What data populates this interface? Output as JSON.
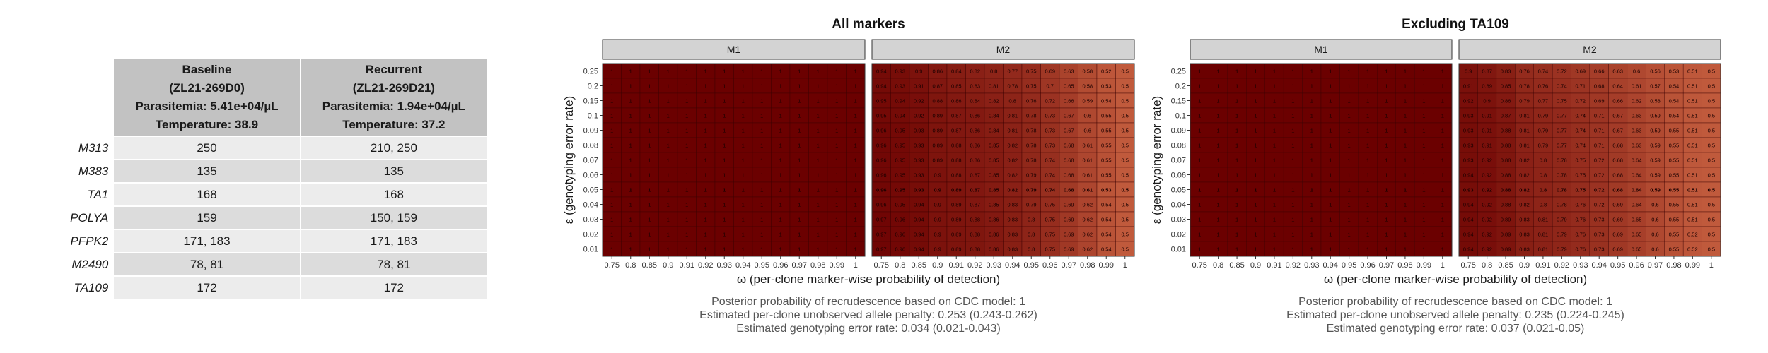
{
  "table": {
    "headers": [
      {
        "lines": [
          "Baseline",
          "(ZL21-269D0)",
          "Parasitemia: 5.41e+04/µL",
          "Temperature: 38.9"
        ]
      },
      {
        "lines": [
          "Recurrent",
          "(ZL21-269D21)",
          "Parasitemia: 1.94e+04/µL",
          "Temperature: 37.2"
        ]
      }
    ],
    "rows": [
      {
        "marker": "M313",
        "baseline": "250",
        "recurrent": "210, 250"
      },
      {
        "marker": "M383",
        "baseline": "135",
        "recurrent": "135"
      },
      {
        "marker": "TA1",
        "baseline": "168",
        "recurrent": "168"
      },
      {
        "marker": "POLYA",
        "baseline": "159",
        "recurrent": "150, 159"
      },
      {
        "marker": "PFPK2",
        "baseline": "171, 183",
        "recurrent": "171, 183"
      },
      {
        "marker": "M2490",
        "baseline": "78, 81",
        "recurrent": "78, 81"
      },
      {
        "marker": "TA109",
        "baseline": "172",
        "recurrent": "172"
      }
    ]
  },
  "chart_data": [
    {
      "type": "heatmap",
      "title": "All markers",
      "xlabel": "ω (per-clone marker-wise probability of detection)",
      "ylabel": "ε (genotyping error rate)",
      "x": [
        "0.75",
        "0.8",
        "0.85",
        "0.9",
        "0.91",
        "0.92",
        "0.93",
        "0.94",
        "0.95",
        "0.96",
        "0.97",
        "0.98",
        "0.99",
        "1"
      ],
      "y": [
        "0.25",
        "0.2",
        "0.15",
        "0.1",
        "0.09",
        "0.08",
        "0.07",
        "0.06",
        "0.05",
        "0.04",
        "0.03",
        "0.02",
        "0.01"
      ],
      "bold_row": "0.05",
      "colors": {
        "high": "#6b0000",
        "low": "#c05a3c"
      },
      "facets": [
        {
          "name": "M1",
          "values": [
            [
              1,
              1,
              1,
              1,
              1,
              1,
              1,
              1,
              1,
              1,
              1,
              1,
              1,
              1
            ],
            [
              1,
              1,
              1,
              1,
              1,
              1,
              1,
              1,
              1,
              1,
              1,
              1,
              1,
              1
            ],
            [
              1,
              1,
              1,
              1,
              1,
              1,
              1,
              1,
              1,
              1,
              1,
              1,
              1,
              1
            ],
            [
              1,
              1,
              1,
              1,
              1,
              1,
              1,
              1,
              1,
              1,
              1,
              1,
              1,
              1
            ],
            [
              1,
              1,
              1,
              1,
              1,
              1,
              1,
              1,
              1,
              1,
              1,
              1,
              1,
              1
            ],
            [
              1,
              1,
              1,
              1,
              1,
              1,
              1,
              1,
              1,
              1,
              1,
              1,
              1,
              1
            ],
            [
              1,
              1,
              1,
              1,
              1,
              1,
              1,
              1,
              1,
              1,
              1,
              1,
              1,
              1
            ],
            [
              1,
              1,
              1,
              1,
              1,
              1,
              1,
              1,
              1,
              1,
              1,
              1,
              1,
              1
            ],
            [
              1,
              1,
              1,
              1,
              1,
              1,
              1,
              1,
              1,
              1,
              1,
              1,
              1,
              1
            ],
            [
              1,
              1,
              1,
              1,
              1,
              1,
              1,
              1,
              1,
              1,
              1,
              1,
              1,
              1
            ],
            [
              1,
              1,
              1,
              1,
              1,
              1,
              1,
              1,
              1,
              1,
              1,
              1,
              1,
              1
            ],
            [
              1,
              1,
              1,
              1,
              1,
              1,
              1,
              1,
              1,
              1,
              1,
              1,
              1,
              1
            ],
            [
              1,
              1,
              1,
              1,
              1,
              1,
              1,
              1,
              1,
              1,
              1,
              1,
              1,
              1
            ]
          ]
        },
        {
          "name": "M2",
          "values": [
            [
              0.94,
              0.93,
              0.9,
              0.86,
              0.84,
              0.82,
              0.8,
              0.77,
              0.75,
              0.69,
              0.63,
              0.58,
              0.52,
              0.5
            ],
            [
              0.94,
              0.93,
              0.91,
              0.87,
              0.85,
              0.83,
              0.81,
              0.78,
              0.75,
              0.7,
              0.65,
              0.58,
              0.53,
              0.5
            ],
            [
              0.95,
              0.94,
              0.92,
              0.88,
              0.86,
              0.84,
              0.82,
              0.8,
              0.76,
              0.72,
              0.66,
              0.59,
              0.54,
              0.5
            ],
            [
              0.95,
              0.94,
              0.92,
              0.89,
              0.87,
              0.86,
              0.84,
              0.81,
              0.78,
              0.73,
              0.67,
              0.6,
              0.55,
              0.5
            ],
            [
              0.96,
              0.95,
              0.93,
              0.89,
              0.87,
              0.86,
              0.84,
              0.81,
              0.78,
              0.73,
              0.67,
              0.6,
              0.55,
              0.5
            ],
            [
              0.96,
              0.95,
              0.93,
              0.89,
              0.88,
              0.86,
              0.85,
              0.82,
              0.78,
              0.73,
              0.68,
              0.61,
              0.55,
              0.5
            ],
            [
              0.96,
              0.95,
              0.93,
              0.89,
              0.88,
              0.86,
              0.85,
              0.82,
              0.78,
              0.74,
              0.68,
              0.61,
              0.55,
              0.5
            ],
            [
              0.96,
              0.95,
              0.93,
              0.9,
              0.88,
              0.87,
              0.85,
              0.82,
              0.79,
              0.74,
              0.68,
              0.61,
              0.55,
              0.5
            ],
            [
              0.96,
              0.95,
              0.93,
              0.9,
              0.89,
              0.87,
              0.85,
              0.82,
              0.79,
              0.74,
              0.68,
              0.61,
              0.53,
              0.5
            ],
            [
              0.96,
              0.95,
              0.94,
              0.9,
              0.89,
              0.87,
              0.85,
              0.83,
              0.79,
              0.75,
              0.69,
              0.62,
              0.54,
              0.5
            ],
            [
              0.97,
              0.96,
              0.94,
              0.9,
              0.89,
              0.88,
              0.86,
              0.83,
              0.8,
              0.75,
              0.69,
              0.62,
              0.54,
              0.5
            ],
            [
              0.97,
              0.96,
              0.94,
              0.9,
              0.89,
              0.88,
              0.86,
              0.83,
              0.8,
              0.75,
              0.69,
              0.62,
              0.54,
              0.5
            ],
            [
              0.97,
              0.96,
              0.94,
              0.9,
              0.89,
              0.88,
              0.86,
              0.83,
              0.8,
              0.75,
              0.69,
              0.62,
              0.54,
              0.5
            ]
          ]
        }
      ],
      "annotations": [
        "Posterior probability of recrudescence based on CDC model: 1",
        "Estimated per-clone unobserved allele penalty: 0.253 (0.243-0.262)",
        "Estimated genotyping error rate: 0.034 (0.021-0.043)"
      ]
    },
    {
      "type": "heatmap",
      "title": "Excluding TA109",
      "xlabel": "ω (per-clone marker-wise probability of detection)",
      "ylabel": "ε (genotyping error rate)",
      "x": [
        "0.75",
        "0.8",
        "0.85",
        "0.9",
        "0.91",
        "0.92",
        "0.93",
        "0.94",
        "0.95",
        "0.96",
        "0.97",
        "0.98",
        "0.99",
        "1"
      ],
      "y": [
        "0.25",
        "0.2",
        "0.15",
        "0.1",
        "0.09",
        "0.08",
        "0.07",
        "0.06",
        "0.05",
        "0.04",
        "0.03",
        "0.02",
        "0.01"
      ],
      "bold_row": "0.05",
      "colors": {
        "high": "#6b0000",
        "low": "#c05a3c"
      },
      "facets": [
        {
          "name": "M1",
          "values": [
            [
              1,
              1,
              1,
              1,
              1,
              1,
              1,
              1,
              1,
              1,
              1,
              1,
              1,
              1
            ],
            [
              1,
              1,
              1,
              1,
              1,
              1,
              1,
              1,
              1,
              1,
              1,
              1,
              1,
              1
            ],
            [
              1,
              1,
              1,
              1,
              1,
              1,
              1,
              1,
              1,
              1,
              1,
              1,
              1,
              1
            ],
            [
              1,
              1,
              1,
              1,
              1,
              1,
              1,
              1,
              1,
              1,
              1,
              1,
              1,
              1
            ],
            [
              1,
              1,
              1,
              1,
              1,
              1,
              1,
              1,
              1,
              1,
              1,
              1,
              1,
              1
            ],
            [
              1,
              1,
              1,
              1,
              1,
              1,
              1,
              1,
              1,
              1,
              1,
              1,
              1,
              1
            ],
            [
              1,
              1,
              1,
              1,
              1,
              1,
              1,
              1,
              1,
              1,
              1,
              1,
              1,
              1
            ],
            [
              1,
              1,
              1,
              1,
              1,
              1,
              1,
              1,
              1,
              1,
              1,
              1,
              1,
              1
            ],
            [
              1,
              1,
              1,
              1,
              1,
              1,
              1,
              1,
              1,
              1,
              1,
              1,
              1,
              1
            ],
            [
              1,
              1,
              1,
              1,
              1,
              1,
              1,
              1,
              1,
              1,
              1,
              1,
              1,
              1
            ],
            [
              1,
              1,
              1,
              1,
              1,
              1,
              1,
              1,
              1,
              1,
              1,
              1,
              1,
              1
            ],
            [
              1,
              1,
              1,
              1,
              1,
              1,
              1,
              1,
              1,
              1,
              1,
              1,
              1,
              1
            ],
            [
              1,
              1,
              1,
              1,
              1,
              1,
              1,
              1,
              1,
              1,
              1,
              1,
              1,
              1
            ]
          ]
        },
        {
          "name": "M2",
          "values": [
            [
              0.9,
              0.87,
              0.83,
              0.76,
              0.74,
              0.72,
              0.69,
              0.66,
              0.63,
              0.6,
              0.56,
              0.53,
              0.51,
              0.5
            ],
            [
              0.91,
              0.89,
              0.85,
              0.78,
              0.76,
              0.74,
              0.71,
              0.68,
              0.64,
              0.61,
              0.57,
              0.54,
              0.51,
              0.5
            ],
            [
              0.92,
              0.9,
              0.86,
              0.79,
              0.77,
              0.75,
              0.72,
              0.69,
              0.66,
              0.62,
              0.58,
              0.54,
              0.51,
              0.5
            ],
            [
              0.93,
              0.91,
              0.87,
              0.81,
              0.79,
              0.77,
              0.74,
              0.71,
              0.67,
              0.63,
              0.59,
              0.54,
              0.51,
              0.5
            ],
            [
              0.93,
              0.91,
              0.88,
              0.81,
              0.79,
              0.77,
              0.74,
              0.71,
              0.67,
              0.63,
              0.59,
              0.55,
              0.51,
              0.5
            ],
            [
              0.93,
              0.91,
              0.88,
              0.81,
              0.79,
              0.77,
              0.74,
              0.71,
              0.68,
              0.63,
              0.59,
              0.55,
              0.51,
              0.5
            ],
            [
              0.93,
              0.92,
              0.88,
              0.82,
              0.8,
              0.78,
              0.75,
              0.72,
              0.68,
              0.64,
              0.59,
              0.55,
              0.51,
              0.5
            ],
            [
              0.94,
              0.92,
              0.88,
              0.82,
              0.8,
              0.78,
              0.75,
              0.72,
              0.68,
              0.64,
              0.59,
              0.55,
              0.51,
              0.5
            ],
            [
              0.93,
              0.92,
              0.88,
              0.82,
              0.8,
              0.78,
              0.75,
              0.72,
              0.68,
              0.64,
              0.59,
              0.55,
              0.51,
              0.5
            ],
            [
              0.94,
              0.92,
              0.88,
              0.82,
              0.8,
              0.78,
              0.76,
              0.72,
              0.69,
              0.64,
              0.6,
              0.55,
              0.51,
              0.5
            ],
            [
              0.94,
              0.92,
              0.89,
              0.83,
              0.81,
              0.79,
              0.76,
              0.73,
              0.69,
              0.65,
              0.6,
              0.55,
              0.51,
              0.5
            ],
            [
              0.94,
              0.92,
              0.89,
              0.83,
              0.81,
              0.79,
              0.76,
              0.73,
              0.69,
              0.65,
              0.6,
              0.55,
              0.52,
              0.5
            ],
            [
              0.94,
              0.92,
              0.89,
              0.83,
              0.81,
              0.79,
              0.76,
              0.73,
              0.69,
              0.65,
              0.6,
              0.55,
              0.52,
              0.5
            ]
          ]
        }
      ],
      "annotations": [
        "Posterior probability of recrudescence based on CDC model: 1",
        "Estimated per-clone unobserved allele penalty: 0.235 (0.224-0.245)",
        "Estimated genotyping error rate: 0.037 (0.021-0.05)"
      ]
    }
  ]
}
